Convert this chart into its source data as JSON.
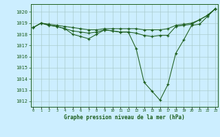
{
  "title": "Graphe pression niveau de la mer (hPa)",
  "bg_color": "#cceeff",
  "line_color": "#1a5c1a",
  "grid_color": "#aacccc",
  "ylim": [
    1011.5,
    1020.7
  ],
  "xlim": [
    -0.3,
    23.3
  ],
  "yticks": [
    1012,
    1013,
    1014,
    1015,
    1016,
    1017,
    1018,
    1019,
    1020
  ],
  "xticks": [
    0,
    1,
    2,
    3,
    4,
    5,
    6,
    7,
    8,
    9,
    10,
    11,
    12,
    13,
    14,
    15,
    16,
    17,
    18,
    19,
    20,
    21,
    22,
    23
  ],
  "series_deep": [
    1018.6,
    1019.0,
    1018.8,
    1018.7,
    1018.5,
    1018.0,
    1017.8,
    1017.6,
    1018.0,
    1018.4,
    1018.3,
    1018.2,
    1018.2,
    1016.7,
    1013.7,
    1012.9,
    1012.1,
    1013.5,
    1016.3,
    1017.5,
    1018.8,
    1018.9,
    1019.6,
    1020.3
  ],
  "series_mid": [
    1018.6,
    1019.0,
    1018.8,
    1018.7,
    1018.5,
    1018.3,
    1018.2,
    1018.1,
    1018.2,
    1018.4,
    1018.3,
    1018.2,
    1018.2,
    1018.1,
    1017.9,
    1017.8,
    1017.9,
    1017.9,
    1018.7,
    1018.8,
    1018.9,
    1019.3,
    1019.7,
    1020.3
  ],
  "series_flat": [
    1018.6,
    1019.0,
    1018.9,
    1018.8,
    1018.7,
    1018.6,
    1018.5,
    1018.4,
    1018.4,
    1018.5,
    1018.5,
    1018.5,
    1018.5,
    1018.5,
    1018.4,
    1018.4,
    1018.4,
    1018.5,
    1018.8,
    1018.9,
    1019.0,
    1019.3,
    1019.7,
    1020.3
  ]
}
